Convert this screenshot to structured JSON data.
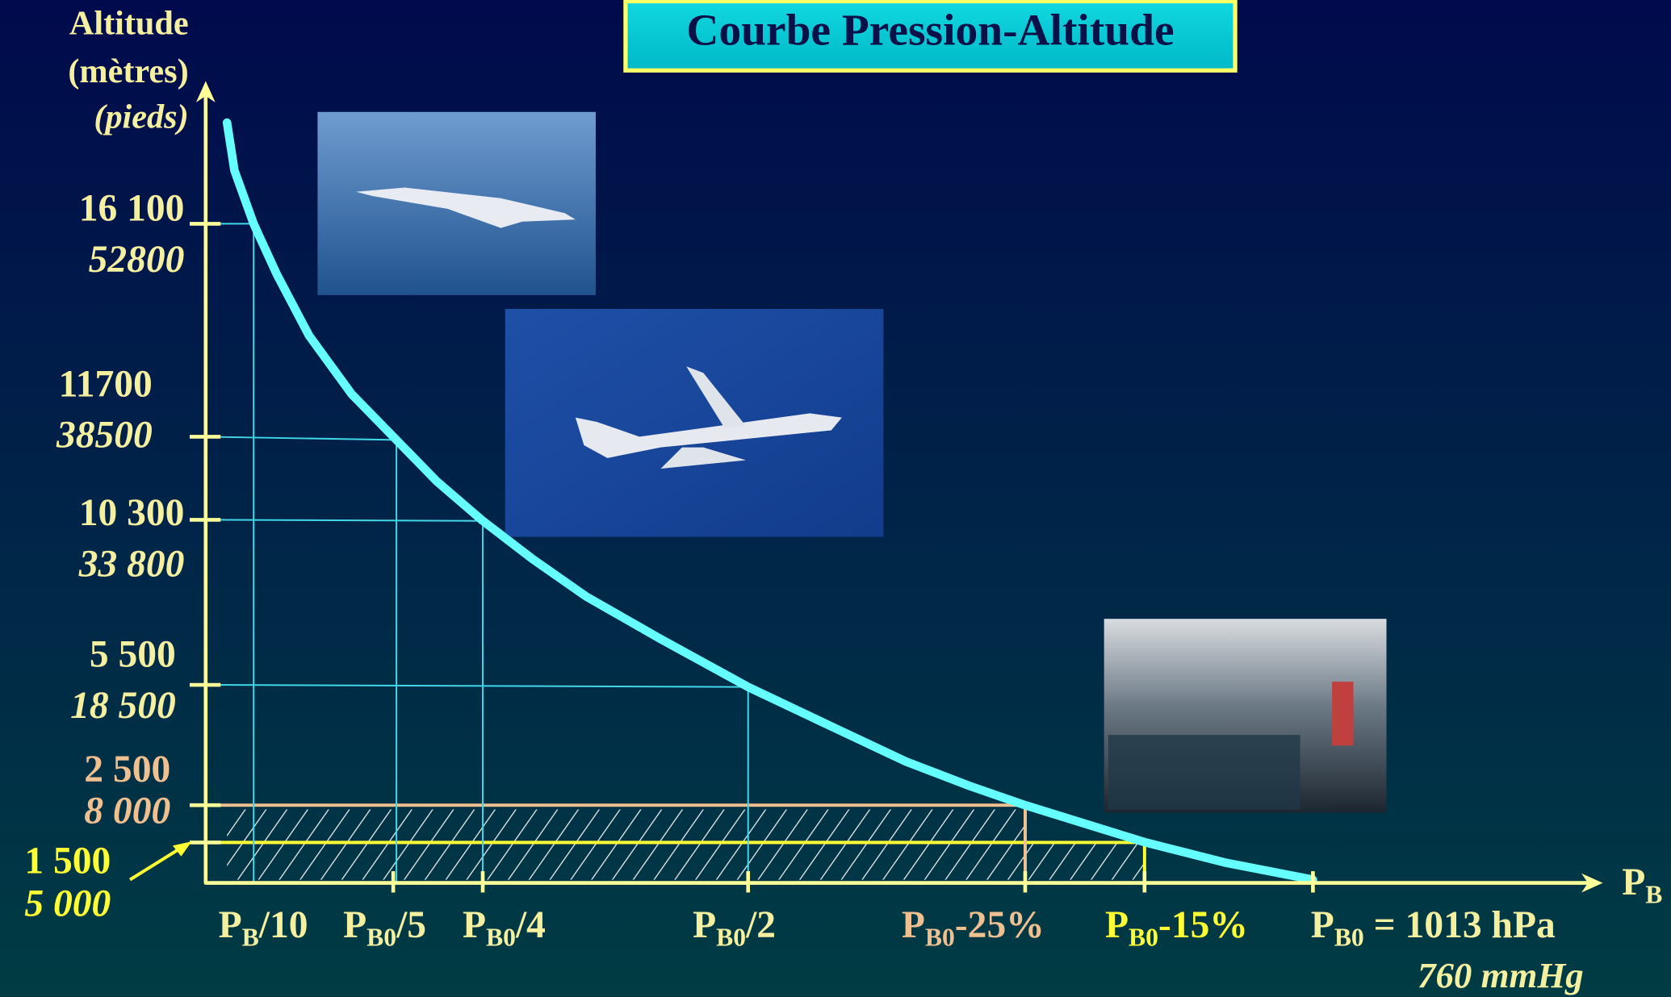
{
  "title": "Courbe Pression-Altitude",
  "y_axis": {
    "label": "Altitude",
    "unit_primary": "(mètres)",
    "unit_secondary": "(pieds)"
  },
  "x_axis": {
    "label": {
      "main": "P",
      "sub": "B"
    }
  },
  "altitudes": [
    {
      "meters": "16 100",
      "feet": "52800"
    },
    {
      "meters": "11700",
      "feet": "38500"
    },
    {
      "meters": "10 300",
      "feet": "33 800"
    },
    {
      "meters": "5 500",
      "feet": "18 500"
    },
    {
      "meters": "2 500",
      "feet": "8 000"
    },
    {
      "meters": "1 500",
      "feet": "5 000"
    }
  ],
  "pressures": [
    {
      "main": "P",
      "sub": "B",
      "rest": "/10"
    },
    {
      "main": "P",
      "sub": "B0",
      "rest": "/5"
    },
    {
      "main": "P",
      "sub": "B0",
      "rest": "/4"
    },
    {
      "main": "P",
      "sub": "B0",
      "rest": "/2"
    },
    {
      "main": "P",
      "sub": "B0",
      "rest": "-25%"
    },
    {
      "main": "P",
      "sub": "B0",
      "rest": "-15%"
    },
    {
      "main": "P",
      "sub": "B0",
      "rest": " = 1013 hPa",
      "second_line": "760 mmHg"
    }
  ]
}
